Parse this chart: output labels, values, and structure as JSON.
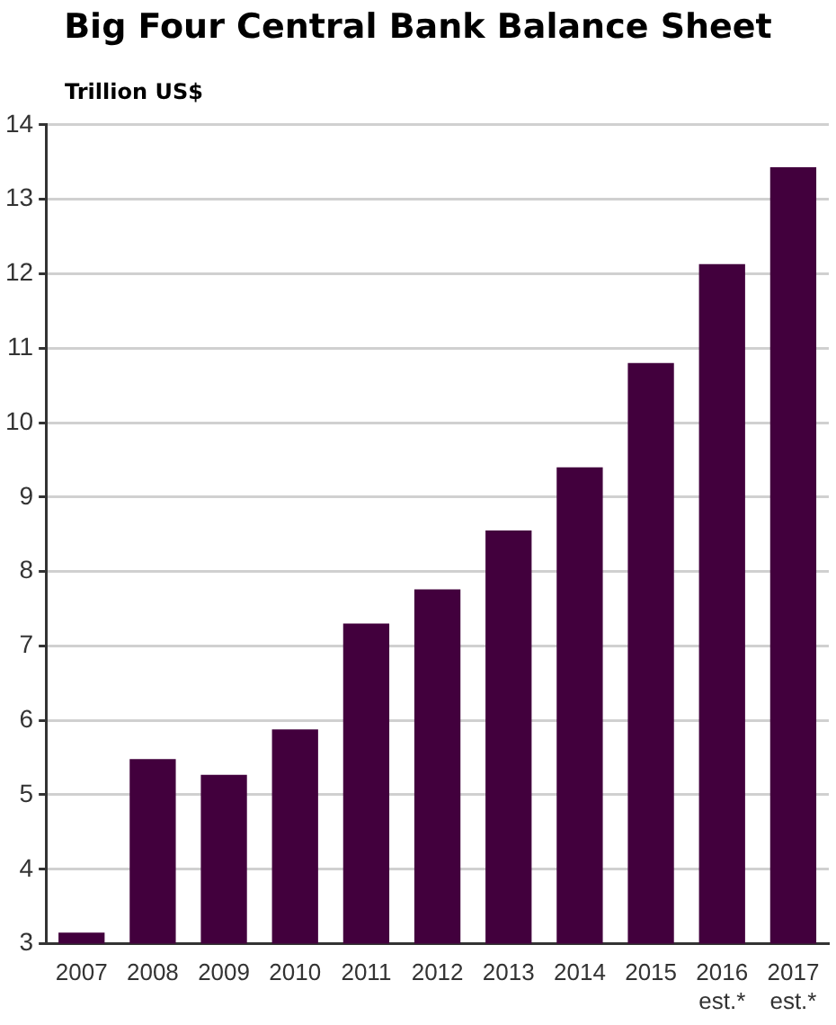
{
  "chart_data": {
    "type": "bar",
    "title": "Big Four Central Bank Balance Sheet",
    "ylabel": "Trillion US$",
    "categories": [
      "2007",
      "2008",
      "2009",
      "2010",
      "2011",
      "2012",
      "2013",
      "2014",
      "2015",
      "2016 est.*",
      "2017 est.*"
    ],
    "values": [
      3.15,
      5.48,
      5.27,
      5.88,
      7.3,
      7.76,
      8.55,
      9.4,
      10.8,
      12.13,
      13.43
    ],
    "color": "#42003d",
    "ylim": [
      3,
      14
    ],
    "yticks": [
      3,
      4,
      5,
      6,
      7,
      8,
      9,
      10,
      11,
      12,
      13,
      14
    ],
    "grid": "y"
  }
}
